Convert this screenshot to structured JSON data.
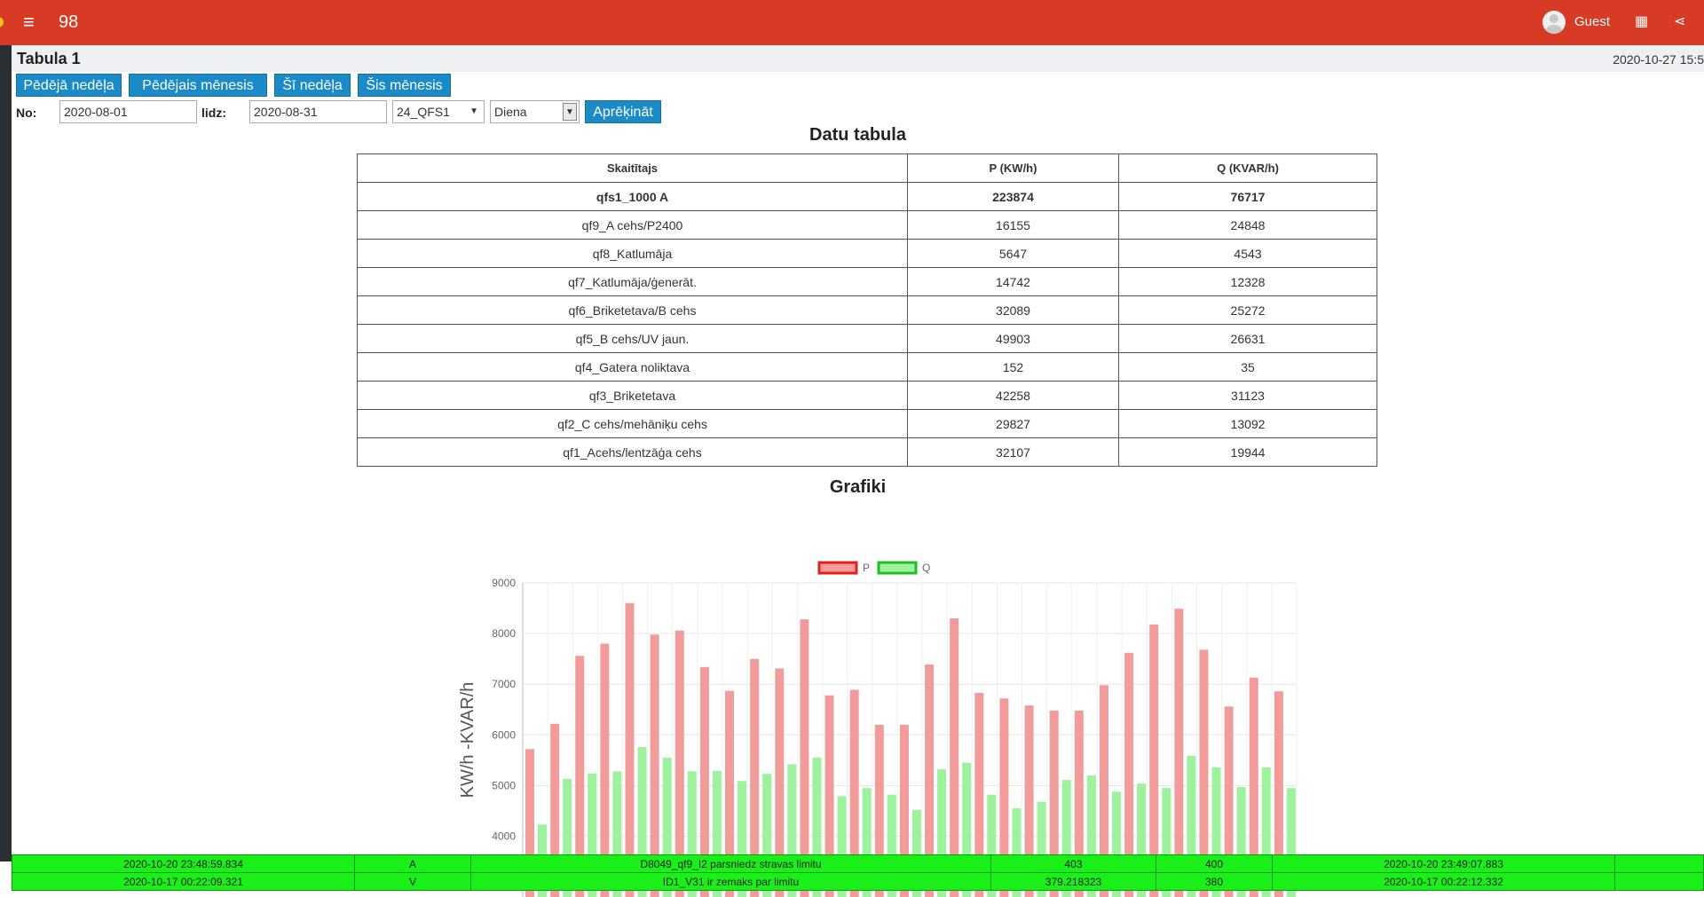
{
  "topbar": {
    "menu_icon": "hamburger-icon",
    "app_number": "98",
    "user": "Guest",
    "accent": "#d73a25"
  },
  "page": {
    "title": "Tabula 1",
    "datetime": "2020-10-27 15:5"
  },
  "quick_buttons": [
    "Pēdējā nedēļa",
    "Pēdējais mēnesis",
    "Šī nedēļa",
    "Šis mēnesis"
  ],
  "filters": {
    "from_label": "No:",
    "from_value": "2020-08-01",
    "to_label": "lidz:",
    "to_value": "2020-08-31",
    "meter_value": "24_QFS1",
    "period_value": "Diena",
    "calc_label": "Aprēķināt"
  },
  "table": {
    "title": "Datu tabula",
    "headers": [
      "Skaitītajs",
      "P (KW/h)",
      "Q (KVAR/h)"
    ],
    "rows": [
      [
        "qfs1_1000 A",
        "223874",
        "76717"
      ],
      [
        "qf9_A cehs/P2400",
        "16155",
        "24848"
      ],
      [
        "qf8_Katlumāja",
        "5647",
        "4543"
      ],
      [
        "qf7_Katlumāja/ģenerāt.",
        "14742",
        "12328"
      ],
      [
        "qf6_Briketetava/B cehs",
        "32089",
        "25272"
      ],
      [
        "qf5_B cehs/UV jaun.",
        "49903",
        "26631"
      ],
      [
        "qf4_Gatera noliktava",
        "152",
        "35"
      ],
      [
        "qf3_Briketetava",
        "42258",
        "31123"
      ],
      [
        "qf2_C cehs/mehāniķu cehs",
        "29827",
        "13092"
      ],
      [
        "qf1_Acehs/lentzāģa cehs",
        "32107",
        "19944"
      ]
    ]
  },
  "chart_data": {
    "type": "bar",
    "title": "Grafiki",
    "ylabel": "KW/h -KVAR/h",
    "ylim": [
      2800,
      9000
    ],
    "yticks": [
      3000,
      4000,
      5000,
      6000,
      7000,
      8000,
      9000
    ],
    "legend_position": "top",
    "grid": true,
    "series": [
      {
        "name": "P",
        "color": "#f29b9b",
        "border": "#e0201f",
        "values": [
          5720,
          6220,
          7560,
          7800,
          8600,
          7980,
          8060,
          7340,
          6870,
          7500,
          7310,
          8280,
          6780,
          6890,
          6200,
          6200,
          7390,
          8300,
          6830,
          6720,
          6580,
          6480,
          6480,
          6980,
          7620,
          8180,
          8490,
          7680,
          6560,
          7130,
          6860
        ]
      },
      {
        "name": "Q",
        "color": "#9ef29e",
        "border": "#1fbf1f",
        "values": [
          4230,
          5130,
          5240,
          5280,
          5760,
          5550,
          5280,
          5290,
          5090,
          5230,
          5420,
          5550,
          4790,
          4950,
          4820,
          4520,
          5320,
          5450,
          4820,
          4550,
          4680,
          5110,
          5200,
          4880,
          5040,
          4950,
          5590,
          5360,
          4970,
          5360,
          4950
        ]
      }
    ]
  },
  "alarms": [
    [
      "2020-10-20 23:48:59.834",
      "A",
      "D8049_qf9_I2 parsniedz stravas limitu",
      "403",
      "400",
      "2020-10-20 23:49:07.883",
      ""
    ],
    [
      "2020-10-17 00:22:09.321",
      "V",
      "ID1_V31 ir zemaks par limitu",
      "379.218323",
      "380",
      "2020-10-17 00:22:12.332",
      ""
    ]
  ]
}
